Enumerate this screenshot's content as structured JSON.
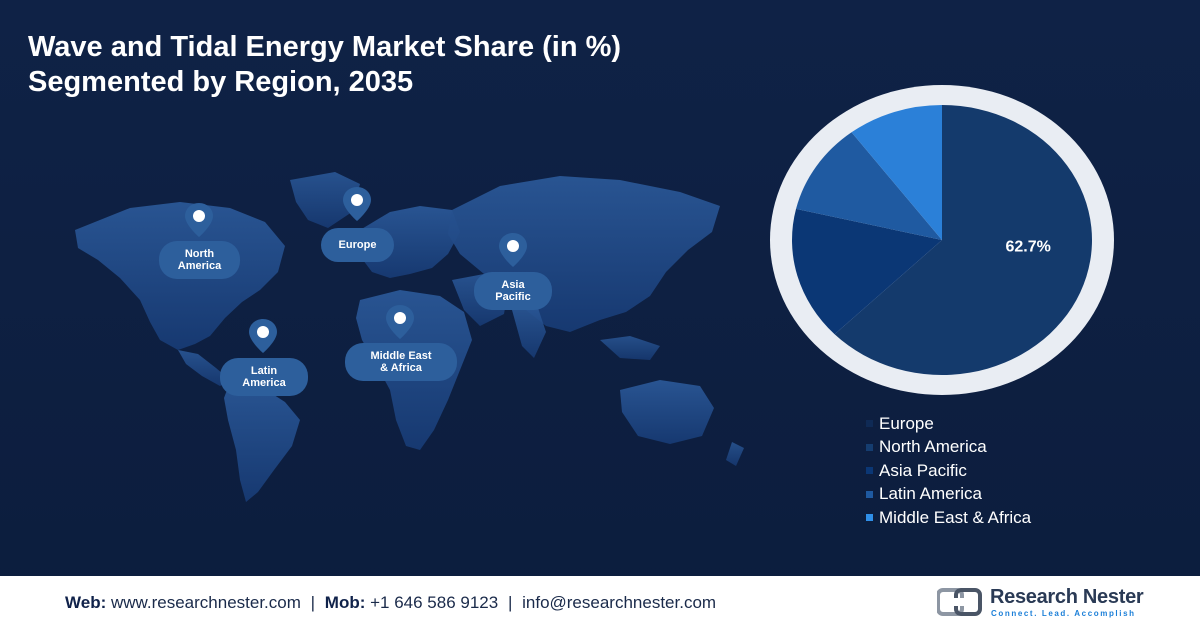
{
  "title": {
    "line1": "Wave and Tidal Energy Market Share (in %)",
    "line2": "Segmented by Region, 2035"
  },
  "map_labels": [
    {
      "id": "north-america",
      "line1": "North",
      "line2": "America"
    },
    {
      "id": "europe",
      "line1": "Europe",
      "line2": ""
    },
    {
      "id": "asia-pacific",
      "line1": "Asia",
      "line2": "Pacific"
    },
    {
      "id": "latin-america",
      "line1": "Latin",
      "line2": "America"
    },
    {
      "id": "middle-east-africa",
      "line1": "Middle East",
      "line2": "& Africa"
    }
  ],
  "chart_data": {
    "type": "pie",
    "slices": [
      {
        "label": "Europe",
        "value": 62.7,
        "color": "#143a6c",
        "display": "62.7%"
      },
      {
        "label": "North America",
        "value": 16.0,
        "color": "#0b3775"
      },
      {
        "label": "Asia Pacific",
        "value": 11.0,
        "color": "#1f5aa1"
      },
      {
        "label": "Latin America",
        "value": 10.3,
        "color": "#2b80d8"
      },
      {
        "label": "Middle East & Africa",
        "value": 0.0,
        "color": "#2f8fe8"
      }
    ],
    "legend": [
      "Europe",
      "North America",
      "Asia Pacific",
      "Latin America",
      "Middle East & Africa"
    ],
    "legend_colors": [
      "#0f2a55",
      "#153d70",
      "#0b3775",
      "#1f5aa1",
      "#2f8fe8"
    ],
    "legend_placement": "bottom-right"
  },
  "footer": {
    "web_label": "Web:",
    "web_value": "www.researchnester.com",
    "mob_label": "Mob:",
    "mob_value": "+1 646 586 9123",
    "email_value": "info@researchnester.com",
    "separator": "|"
  },
  "logo": {
    "name": "Research Nester",
    "tagline": "Connect. Lead. Accomplish"
  }
}
